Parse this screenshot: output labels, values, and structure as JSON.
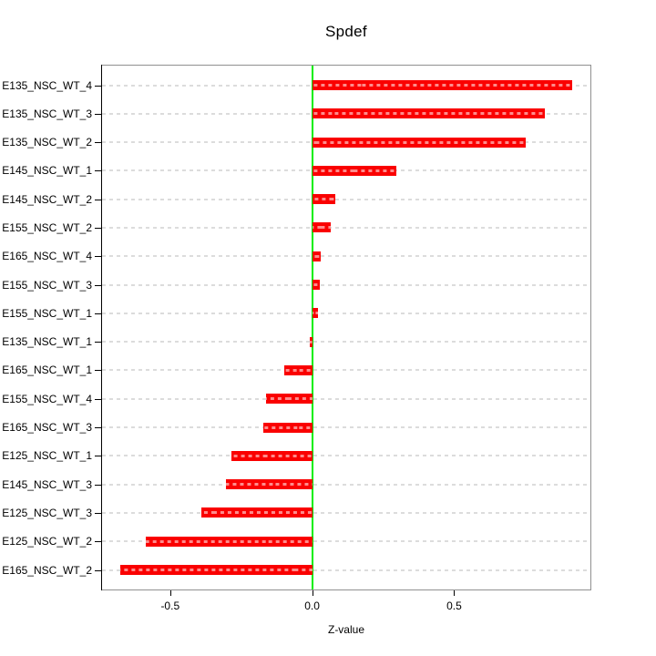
{
  "page": {
    "background": "#FFFFFF"
  },
  "chart_data": {
    "type": "bar",
    "orientation": "horizontal",
    "title": "Spdef",
    "xlabel": "Z-value",
    "ylabel": "",
    "categories_top_to_bottom": true,
    "categories": [
      "E135_NSC_WT_4",
      "E135_NSC_WT_3",
      "E135_NSC_WT_2",
      "E145_NSC_WT_1",
      "E145_NSC_WT_2",
      "E155_NSC_WT_2",
      "E165_NSC_WT_4",
      "E155_NSC_WT_3",
      "E155_NSC_WT_1",
      "E135_NSC_WT_1",
      "E165_NSC_WT_1",
      "E155_NSC_WT_4",
      "E165_NSC_WT_3",
      "E125_NSC_WT_1",
      "E145_NSC_WT_3",
      "E125_NSC_WT_3",
      "E125_NSC_WT_2",
      "E165_NSC_WT_2"
    ],
    "values": [
      0.917,
      0.82,
      0.751,
      0.298,
      0.08,
      0.065,
      0.031,
      0.028,
      0.019,
      -0.007,
      -0.097,
      -0.162,
      -0.173,
      -0.283,
      -0.305,
      -0.39,
      -0.585,
      -0.677
    ],
    "xlim": [
      -0.74,
      0.98
    ],
    "xticks": {
      "values": [
        -0.5,
        0.0,
        0.5
      ],
      "labels": [
        "-0.5",
        "0.0",
        "0.5"
      ]
    },
    "grid": "horizontal-dashed-per-category",
    "zero_line_value": 0.0,
    "legend": "none"
  },
  "colors": {
    "bar": "#FA0000",
    "zero_line": "#00EE00",
    "gridline": "#DCDCDC",
    "plot_border": "#909090",
    "axis_line": "#000000",
    "text": "#000000",
    "background": "#FFFFFF"
  }
}
